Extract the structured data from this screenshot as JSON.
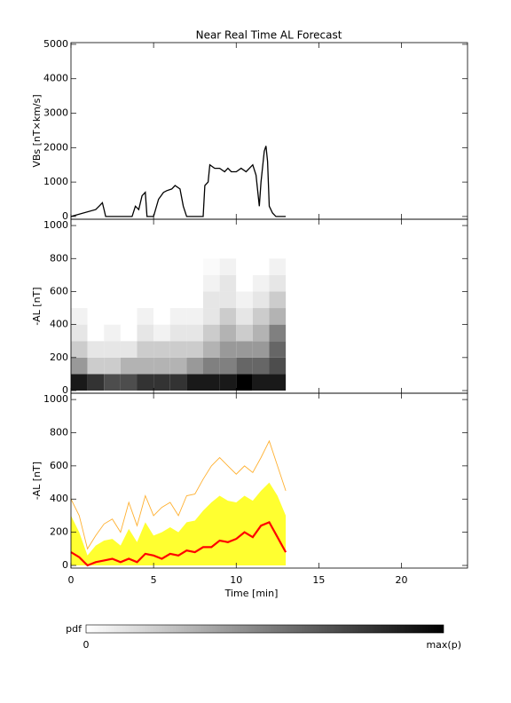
{
  "chart_data": [
    {
      "type": "line",
      "title": "Near Real Time AL Forecast",
      "y_label": "VBs [nT×km/s]",
      "x": [
        0,
        1.5,
        1.7,
        1.9,
        2.0,
        2.1,
        3.7,
        3.9,
        4.1,
        4.3,
        4.5,
        4.6,
        5.0,
        5.3,
        5.6,
        5.8,
        6.1,
        6.3,
        6.6,
        6.8,
        7.0,
        8.0,
        8.1,
        8.3,
        8.4,
        8.7,
        9.0,
        9.3,
        9.5,
        9.7,
        10.0,
        10.3,
        10.6,
        11.0,
        11.2,
        11.4,
        11.5,
        11.7,
        11.8,
        11.9,
        12.0,
        12.2,
        12.4,
        13.0
      ],
      "values": [
        0,
        200,
        300,
        400,
        200,
        0,
        0,
        300,
        200,
        600,
        700,
        0,
        0,
        500,
        700,
        750,
        800,
        900,
        800,
        300,
        0,
        0,
        900,
        1000,
        1500,
        1400,
        1400,
        1300,
        1400,
        1300,
        1300,
        1400,
        1300,
        1500,
        1200,
        300,
        1000,
        1900,
        2050,
        1600,
        300,
        100,
        0,
        0
      ],
      "color": "#000000",
      "xlim": [
        0,
        24
      ],
      "ylim": [
        -80,
        5050
      ],
      "xticks": [
        0,
        5,
        10,
        15,
        20
      ],
      "yticks": [
        0,
        1000,
        2000,
        3000,
        4000,
        5000
      ]
    },
    {
      "type": "heatmap",
      "y_label": "-AL [nT]",
      "x_bins": [
        0,
        1,
        2,
        3,
        4,
        5,
        6,
        7,
        8,
        9,
        10,
        11,
        12,
        13
      ],
      "y_bins": [
        0,
        100,
        200,
        300,
        400,
        500,
        600,
        700,
        800
      ],
      "values": [
        [
          0.9,
          0.8,
          0.7,
          0.7,
          0.8,
          0.8,
          0.8,
          0.9,
          0.9,
          0.9,
          1,
          0.9,
          0.9
        ],
        [
          0.4,
          0.2,
          0.2,
          0.3,
          0.3,
          0.3,
          0.3,
          0.4,
          0.5,
          0.5,
          0.6,
          0.6,
          0.7
        ],
        [
          0.2,
          0.1,
          0.1,
          0.1,
          0.2,
          0.2,
          0.2,
          0.2,
          0.3,
          0.4,
          0.4,
          0.4,
          0.6
        ],
        [
          0.1,
          0,
          0.05,
          0,
          0.1,
          0.05,
          0.1,
          0.1,
          0.2,
          0.3,
          0.2,
          0.3,
          0.5
        ],
        [
          0.05,
          0,
          0,
          0,
          0.05,
          0,
          0.05,
          0.05,
          0.1,
          0.2,
          0.1,
          0.2,
          0.3
        ],
        [
          0,
          0,
          0,
          0,
          0,
          0,
          0,
          0,
          0.1,
          0.1,
          0.05,
          0.1,
          0.2
        ],
        [
          0,
          0,
          0,
          0,
          0,
          0,
          0,
          0,
          0.05,
          0.1,
          0,
          0.05,
          0.1
        ],
        [
          0,
          0,
          0,
          0,
          0,
          0,
          0,
          0,
          0.02,
          0.05,
          0,
          0,
          0.05
        ]
      ],
      "xlim": [
        0,
        24
      ],
      "ylim": [
        -16,
        1038
      ],
      "xticks": [
        0,
        5,
        10,
        15,
        20
      ],
      "yticks": [
        0,
        200,
        400,
        600,
        800,
        1000
      ]
    },
    {
      "type": "band",
      "y_label": "-AL [nT]",
      "x_label": "Time [min]",
      "x": [
        0,
        0.5,
        1,
        1.5,
        2,
        2.5,
        3,
        3.5,
        4,
        4.5,
        5,
        5.5,
        6,
        6.5,
        7,
        7.5,
        8,
        8.5,
        9,
        9.5,
        10,
        10.5,
        11,
        11.5,
        12,
        12.5,
        13
      ],
      "series": [
        {
          "color": "#ffb030",
          "values": [
            400,
            300,
            100,
            180,
            250,
            280,
            200,
            380,
            240,
            420,
            300,
            350,
            380,
            300,
            420,
            430,
            520,
            600,
            650,
            600,
            550,
            600,
            560,
            650,
            750,
            600,
            450
          ]
        },
        {
          "color": "#ffff30",
          "values": [
            300,
            200,
            60,
            120,
            150,
            160,
            120,
            220,
            140,
            260,
            180,
            200,
            230,
            200,
            260,
            270,
            330,
            380,
            420,
            390,
            380,
            420,
            390,
            450,
            500,
            420,
            300
          ]
        },
        {
          "color": "#ff0000",
          "values": [
            80,
            50,
            0,
            20,
            30,
            40,
            20,
            40,
            20,
            70,
            60,
            40,
            70,
            60,
            90,
            80,
            110,
            110,
            150,
            140,
            160,
            200,
            170,
            240,
            260,
            170,
            80
          ]
        }
      ],
      "xlim": [
        0,
        24
      ],
      "ylim": [
        -16,
        1038
      ],
      "xticks": [
        0,
        5,
        10,
        15,
        20
      ],
      "yticks": [
        0,
        200,
        400,
        600,
        800,
        1000
      ]
    }
  ],
  "colorbar": {
    "label": "pdf",
    "min_label": "0",
    "max_label": "max(p)"
  }
}
